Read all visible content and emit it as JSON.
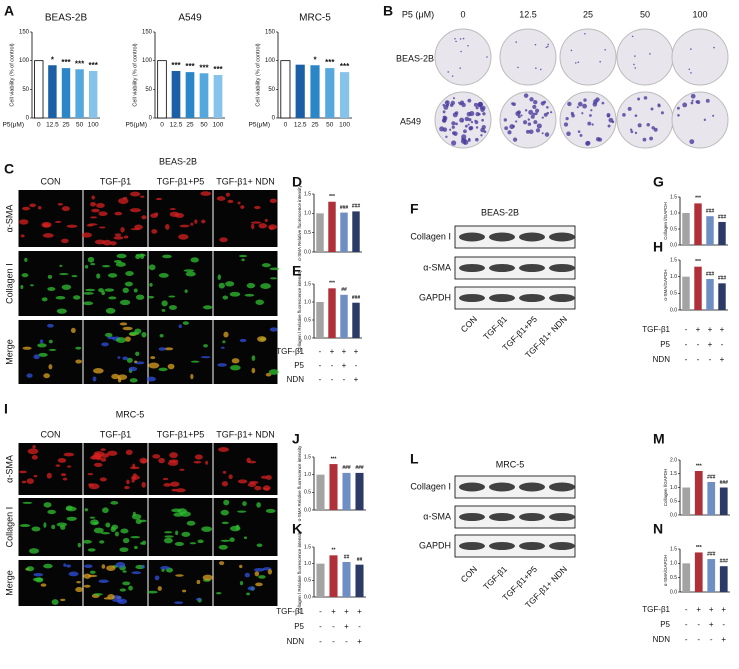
{
  "panel_letters": [
    "A",
    "B",
    "C",
    "D",
    "E",
    "F",
    "G",
    "H",
    "I",
    "J",
    "K",
    "L",
    "M",
    "N"
  ],
  "chart_data": [
    {
      "type": "bar",
      "title": "BEAS-2B",
      "y_label": "Cell viability (% of control)",
      "x_label": "P5(μM)",
      "categories": [
        "0",
        "12.5",
        "25",
        "50",
        "100"
      ],
      "values": [
        100,
        92,
        87,
        85,
        82
      ],
      "annotations": [
        null,
        "*",
        "***",
        "***",
        "***"
      ],
      "colors": [
        "#ffffff",
        "#1b5fa6",
        "#2b86c8",
        "#54a8de",
        "#86c3ea"
      ],
      "ylim": [
        0,
        150
      ],
      "yticks": [
        0,
        50,
        100,
        150
      ]
    },
    {
      "type": "bar",
      "title": "A549",
      "y_label": "Cell viability (% of control)",
      "x_label": "P5(μM)",
      "categories": [
        "0",
        "12.5",
        "25",
        "50",
        "100"
      ],
      "values": [
        100,
        82,
        80,
        78,
        75
      ],
      "annotations": [
        null,
        "***",
        "***",
        "***",
        "***"
      ],
      "colors": [
        "#ffffff",
        "#1b5fa6",
        "#2b86c8",
        "#54a8de",
        "#86c3ea"
      ],
      "ylim": [
        0,
        150
      ],
      "yticks": [
        0,
        50,
        100,
        150
      ]
    },
    {
      "type": "bar",
      "title": "MRC-5",
      "y_label": "Cell viability (% of control)",
      "x_label": "P5(μM)",
      "categories": [
        "0",
        "12.5",
        "25",
        "50",
        "100"
      ],
      "values": [
        100,
        93,
        92,
        87,
        80
      ],
      "annotations": [
        null,
        null,
        "*",
        "***",
        "***"
      ],
      "colors": [
        "#ffffff",
        "#1b5fa6",
        "#2b86c8",
        "#54a8de",
        "#86c3ea"
      ],
      "ylim": [
        0,
        150
      ],
      "yticks": [
        0,
        50,
        100,
        150
      ]
    },
    {
      "type": "bar",
      "y_label": "α-SMA Relative fluorescence intensity",
      "values": [
        1.0,
        1.3,
        1.02,
        1.05
      ],
      "annotations": [
        null,
        "***",
        "###",
        "###"
      ],
      "colors": [
        "#a3a3a3",
        "#b0303a",
        "#6f8fc4",
        "#2c3a66"
      ],
      "ylim": [
        0,
        1.5
      ],
      "yticks": [
        {
          "value": 0,
          "label": "0.0"
        },
        {
          "value": 0.5,
          "label": "0.5"
        },
        {
          "value": 1,
          "label": "1.0"
        },
        {
          "value": 1.5,
          "label": "1.5"
        }
      ]
    },
    {
      "type": "bar",
      "y_label": "Collagen Ⅰ Relative fluorescence intensity",
      "values": [
        1.0,
        1.38,
        1.2,
        0.98
      ],
      "annotations": [
        null,
        "***",
        "##",
        "###"
      ],
      "colors": [
        "#a3a3a3",
        "#b0303a",
        "#6f8fc4",
        "#2c3a66"
      ],
      "ylim": [
        0,
        1.5
      ],
      "yticks": [
        {
          "value": 0,
          "label": "0.0"
        },
        {
          "value": 0.5,
          "label": "0.5"
        },
        {
          "value": 1,
          "label": "1.0"
        },
        {
          "value": 1.5,
          "label": "1.5"
        }
      ]
    },
    {
      "type": "bar",
      "y_label": "Collagen Ⅰ/GAPDH",
      "values": [
        1.0,
        1.3,
        0.9,
        0.72
      ],
      "annotations": [
        null,
        "***",
        "###",
        "###"
      ],
      "colors": [
        "#a3a3a3",
        "#b0303a",
        "#6f8fc4",
        "#2c3a66"
      ],
      "ylim": [
        0,
        1.5
      ],
      "yticks": [
        {
          "value": 0,
          "label": "0.0"
        },
        {
          "value": 0.5,
          "label": "0.5"
        },
        {
          "value": 1,
          "label": "1.0"
        },
        {
          "value": 1.5,
          "label": "1.5"
        }
      ]
    },
    {
      "type": "bar",
      "y_label": "α-SMA/GAPDH",
      "values": [
        1.0,
        1.3,
        0.93,
        0.8
      ],
      "annotations": [
        null,
        "***",
        "###",
        "###"
      ],
      "colors": [
        "#a3a3a3",
        "#b0303a",
        "#6f8fc4",
        "#2c3a66"
      ],
      "ylim": [
        0,
        1.5
      ],
      "yticks": [
        {
          "value": 0,
          "label": "0.0"
        },
        {
          "value": 0.5,
          "label": "0.5"
        },
        {
          "value": 1,
          "label": "1.0"
        },
        {
          "value": 1.5,
          "label": "1.5"
        }
      ]
    },
    {
      "type": "bar",
      "y_label": "α-SMA Relative fluorescence intensity",
      "values": [
        1.0,
        1.3,
        1.05,
        1.05
      ],
      "annotations": [
        null,
        "***",
        "###",
        "###"
      ],
      "colors": [
        "#a3a3a3",
        "#b0303a",
        "#6f8fc4",
        "#2c3a66"
      ],
      "ylim": [
        0,
        1.5
      ],
      "yticks": [
        {
          "value": 0,
          "label": "0.0"
        },
        {
          "value": 0.5,
          "label": "0.5"
        },
        {
          "value": 1,
          "label": "1.0"
        },
        {
          "value": 1.5,
          "label": "1.5"
        }
      ]
    },
    {
      "type": "bar",
      "y_label": "Collagen Ⅰ Relative fluorescence intensity",
      "values": [
        1.0,
        1.25,
        1.05,
        0.97
      ],
      "annotations": [
        null,
        "**",
        "##",
        "##"
      ],
      "colors": [
        "#a3a3a3",
        "#b0303a",
        "#6f8fc4",
        "#2c3a66"
      ],
      "ylim": [
        0,
        1.5
      ],
      "yticks": [
        {
          "value": 0,
          "label": "0.0"
        },
        {
          "value": 0.5,
          "label": "0.5"
        },
        {
          "value": 1,
          "label": "1.0"
        },
        {
          "value": 1.5,
          "label": "1.5"
        }
      ]
    },
    {
      "type": "bar",
      "y_label": "Collagen Ⅰ/GAPDH",
      "values": [
        1.0,
        1.6,
        1.2,
        1.0
      ],
      "annotations": [
        null,
        "***",
        "###",
        "###"
      ],
      "colors": [
        "#a3a3a3",
        "#b0303a",
        "#6f8fc4",
        "#2c3a66"
      ],
      "ylim": [
        0,
        2
      ],
      "yticks": [
        {
          "value": 0,
          "label": "0.0"
        },
        {
          "value": 0.5,
          "label": "0.5"
        },
        {
          "value": 1,
          "label": "1.0"
        },
        {
          "value": 1.5,
          "label": "1.5"
        },
        {
          "value": 2,
          "label": "2.0"
        }
      ]
    },
    {
      "type": "bar",
      "y_label": "α-SMA/GAPDH",
      "values": [
        1.0,
        1.38,
        1.15,
        0.9
      ],
      "annotations": [
        null,
        "***",
        "###",
        "###"
      ],
      "colors": [
        "#a3a3a3",
        "#b0303a",
        "#6f8fc4",
        "#2c3a66"
      ],
      "ylim": [
        0,
        1.5
      ],
      "yticks": [
        {
          "value": 0,
          "label": "0.0"
        },
        {
          "value": 0.5,
          "label": "0.5"
        },
        {
          "value": 1,
          "label": "1.0"
        },
        {
          "value": 1.5,
          "label": "1.5"
        }
      ]
    }
  ],
  "colony": {
    "header": "P5 (μM)",
    "doses": [
      "0",
      "12.5",
      "25",
      "50",
      "100"
    ],
    "rows": [
      "BEAS-2B",
      "A549"
    ]
  },
  "if_beas": {
    "title": "BEAS-2B",
    "columns": [
      "CON",
      "TGF-β1",
      "TGF-β1+P5",
      "TGF-β1+ NDN"
    ],
    "rows": [
      "α-SMA",
      "Collagen Ⅰ",
      "Merge"
    ]
  },
  "if_mrc": {
    "title": "MRC-5",
    "columns": [
      "CON",
      "TGF-β1",
      "TGF-β1+P5",
      "TGF-β1+ NDN"
    ],
    "rows": [
      "α-SMA",
      "Collagen Ⅰ",
      "Merge"
    ]
  },
  "wb_beas": {
    "title": "BEAS-2B",
    "bands": [
      "Collagen Ⅰ",
      "α-SMA",
      "GAPDH"
    ],
    "lanes": [
      "CON",
      "TGF-β1",
      "TGF-β1+P5",
      "TGF-β1+ NDN"
    ]
  },
  "wb_mrc": {
    "title": "MRC-5",
    "bands": [
      "Collagen Ⅰ",
      "α-SMA",
      "GAPDH"
    ],
    "lanes": [
      "CON",
      "TGF-β1",
      "TGF-β1+P5",
      "TGF-β1+ NDN"
    ]
  },
  "treatments": {
    "rows": [
      {
        "label": "TGF-β1",
        "marks": [
          "-",
          "+",
          "+",
          "+"
        ]
      },
      {
        "label": "P5",
        "marks": [
          "-",
          "-",
          "+",
          "-"
        ]
      },
      {
        "label": "NDN",
        "marks": [
          "-",
          "-",
          "-",
          "+"
        ]
      }
    ]
  }
}
